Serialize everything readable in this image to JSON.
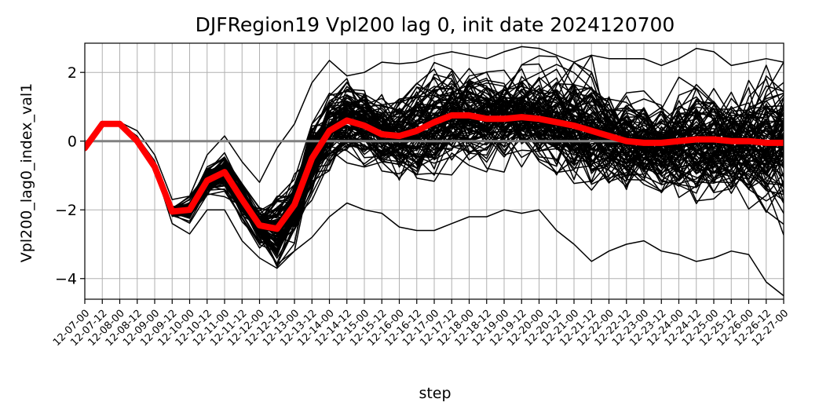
{
  "chart_data": {
    "type": "line",
    "title": "DJFRegion19 Vpl200 lag 0, init date 2024120700",
    "xlabel": "step",
    "ylabel": "Vpl200_lag0_index_val1",
    "categories": [
      "12-07-00",
      "12-07-12",
      "12-08-00",
      "12-08-12",
      "12-09-00",
      "12-09-12",
      "12-10-00",
      "12-10-12",
      "12-11-00",
      "12-11-12",
      "12-12-00",
      "12-12-12",
      "12-13-00",
      "12-13-12",
      "12-14-00",
      "12-14-12",
      "12-15-00",
      "12-15-12",
      "12-16-00",
      "12-16-12",
      "12-17-00",
      "12-17-12",
      "12-18-00",
      "12-18-12",
      "12-19-00",
      "12-19-12",
      "12-20-00",
      "12-20-12",
      "12-21-00",
      "12-21-12",
      "12-22-00",
      "12-22-12",
      "12-23-00",
      "12-23-12",
      "12-24-00",
      "12-24-12",
      "12-25-00",
      "12-25-12",
      "12-26-00",
      "12-26-12",
      "12-27-00"
    ],
    "ylim": [
      -4.6,
      2.85
    ],
    "yticks": [
      -4,
      -2,
      0,
      2
    ],
    "grid": true,
    "reference_line": {
      "y": 0,
      "color": "#808080"
    },
    "ensemble": {
      "members": 100,
      "color": "#000000",
      "envelope": {
        "upper": [
          -0.2,
          0.55,
          0.55,
          0.3,
          -0.4,
          -1.7,
          -1.6,
          -0.4,
          0.15,
          -0.6,
          -1.2,
          -0.2,
          0.5,
          1.7,
          2.35,
          1.9,
          2.0,
          2.3,
          2.25,
          2.3,
          2.5,
          2.6,
          2.5,
          2.4,
          2.6,
          2.75,
          2.7,
          2.5,
          2.3,
          2.5,
          2.4,
          2.4,
          2.4,
          2.2,
          2.4,
          2.7,
          2.6,
          2.2,
          2.3,
          2.4,
          2.3
        ],
        "lower": [
          -0.2,
          0.45,
          0.45,
          -0.1,
          -0.8,
          -2.4,
          -2.7,
          -2.0,
          -2.0,
          -2.9,
          -3.4,
          -3.7,
          -3.2,
          -2.8,
          -2.2,
          -1.8,
          -2.0,
          -2.1,
          -2.5,
          -2.6,
          -2.6,
          -2.4,
          -2.2,
          -2.2,
          -2.0,
          -2.1,
          -2.0,
          -2.6,
          -3.0,
          -3.5,
          -3.2,
          -3.0,
          -2.9,
          -3.2,
          -3.3,
          -3.5,
          -3.4,
          -3.2,
          -3.3,
          -4.1,
          -4.5
        ]
      }
    },
    "series": [
      {
        "color": "#ff0000",
        "values": [
          -0.2,
          0.5,
          0.5,
          0.0,
          -0.75,
          -2.05,
          -2.0,
          -1.15,
          -0.9,
          -1.7,
          -2.45,
          -2.55,
          -1.85,
          -0.5,
          0.3,
          0.6,
          0.45,
          0.2,
          0.15,
          0.3,
          0.55,
          0.75,
          0.75,
          0.65,
          0.65,
          0.7,
          0.65,
          0.55,
          0.45,
          0.3,
          0.15,
          0.0,
          -0.05,
          -0.05,
          0.0,
          0.05,
          0.05,
          0.0,
          0.0,
          -0.05,
          -0.05
        ]
      }
    ]
  }
}
